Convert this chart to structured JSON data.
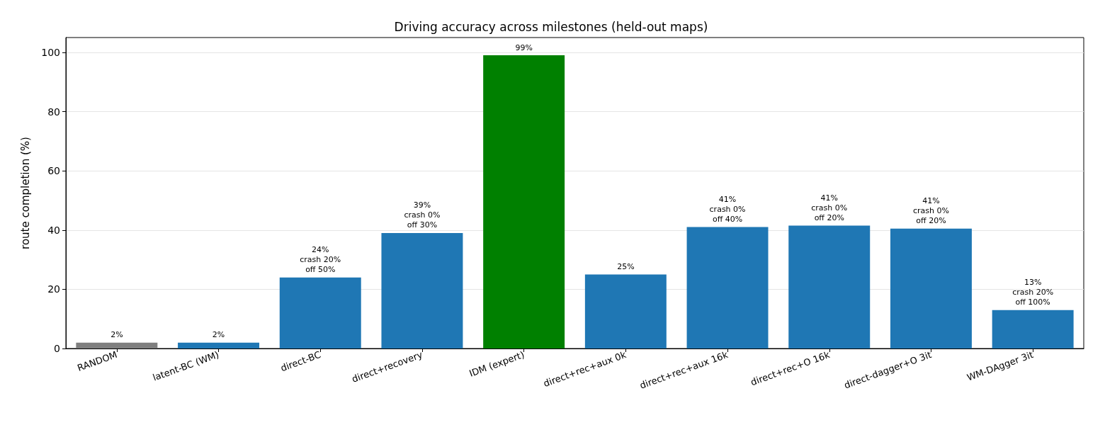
{
  "chart_data": {
    "type": "bar",
    "title": "Driving accuracy across milestones (held-out maps)",
    "ylabel": "route completion (%)",
    "categories": [
      "RANDOM",
      "latent-BC (WM)",
      "direct-BC",
      "direct+recovery",
      "IDM (expert)",
      "direct+rec+aux 0k",
      "direct+rec+aux 16k",
      "direct+rec+O 16k",
      "direct-dagger+O 3it",
      "WM-DAgger 3it"
    ],
    "values": [
      2,
      2,
      24,
      39,
      99,
      25,
      41,
      41.5,
      40.5,
      13
    ],
    "colors": [
      "#7f7f7f",
      "#1f77b4",
      "#1f77b4",
      "#1f77b4",
      "#008000",
      "#1f77b4",
      "#1f77b4",
      "#1f77b4",
      "#1f77b4",
      "#1f77b4"
    ],
    "value_labels": [
      "2%",
      "2%",
      "24%\ncrash 20%\noff 50%",
      "39%\ncrash 0%\noff 30%",
      "99%",
      "25%",
      "41%\ncrash 0%\noff 40%",
      "41%\ncrash 0%\noff 20%",
      "41%\ncrash 0%\noff 20%",
      "13%\ncrash 20%\noff 100%"
    ],
    "ylim": [
      0,
      105
    ],
    "yticks": [
      0,
      20,
      40,
      60,
      80,
      100
    ],
    "grid": "y"
  }
}
